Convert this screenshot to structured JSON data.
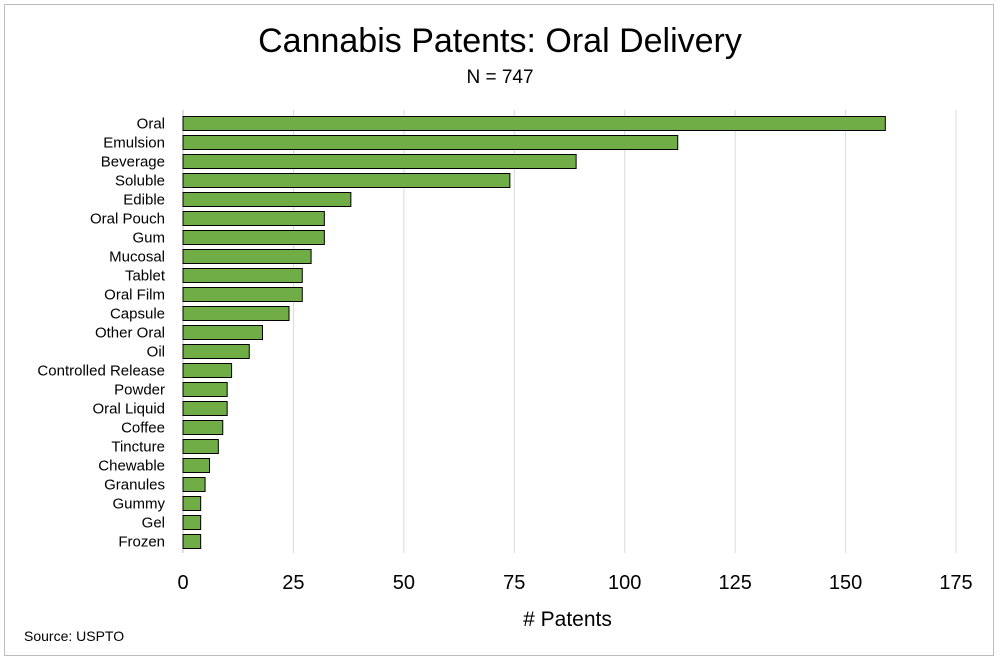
{
  "chart_data": {
    "type": "bar",
    "orientation": "horizontal",
    "title": "Cannabis Patents: Oral Delivery",
    "subtitle": "N = 747",
    "xlabel": "# Patents",
    "ylabel": "",
    "source": "Source: USPTO",
    "xlim": [
      0,
      175
    ],
    "xticks": [
      0,
      25,
      50,
      75,
      100,
      125,
      150,
      175
    ],
    "grid": true,
    "legend": "none",
    "bar_color": "#70ad47",
    "bar_edge_color": "#000000",
    "categories": [
      "Oral",
      "Emulsion",
      "Beverage",
      "Soluble",
      "Edible",
      "Oral Pouch",
      "Gum",
      "Mucosal",
      "Tablet",
      "Oral Film",
      "Capsule",
      "Other Oral",
      "Oil",
      "Controlled Release",
      "Powder",
      "Oral Liquid",
      "Coffee",
      "Tincture",
      "Chewable",
      "Granules",
      "Gummy",
      "Gel",
      "Frozen"
    ],
    "values": [
      159,
      112,
      89,
      74,
      38,
      32,
      32,
      29,
      27,
      27,
      24,
      18,
      15,
      11,
      10,
      10,
      9,
      8,
      6,
      5,
      4,
      4,
      4
    ]
  }
}
